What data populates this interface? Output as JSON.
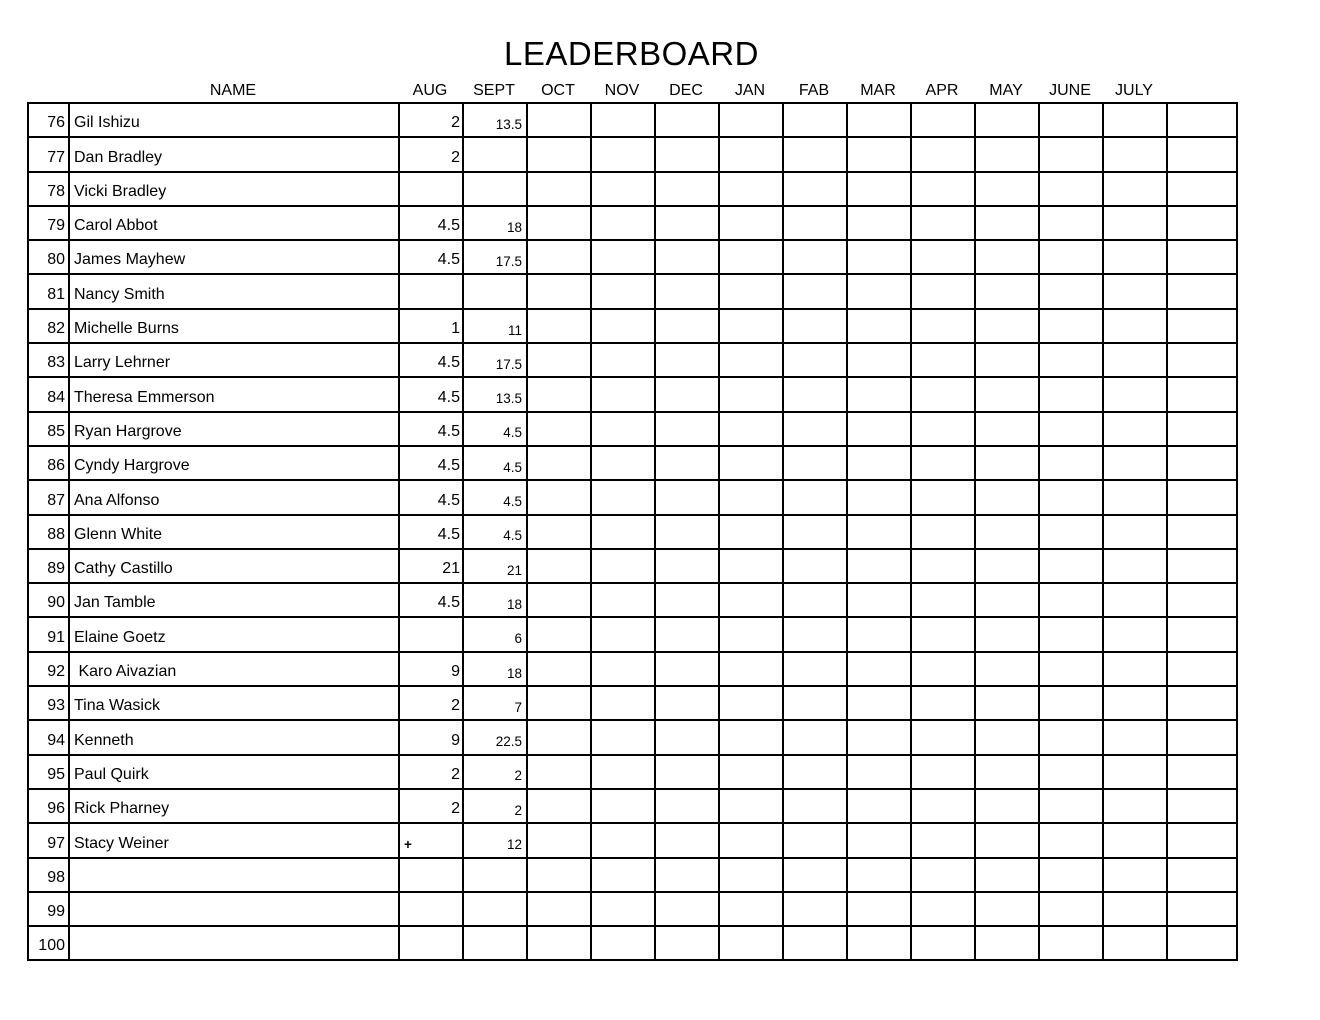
{
  "title": "LEADERBOARD",
  "table": {
    "name_header": "NAME",
    "month_headers": [
      "AUG",
      "SEPT",
      "OCT",
      "NOV",
      "DEC",
      "JAN",
      "FAB",
      "MAR",
      "APR",
      "MAY",
      "JUNE",
      "JULY"
    ],
    "rows": [
      {
        "num": "76",
        "name": "Gil Ishizu",
        "aug": "2",
        "sept": "13.5"
      },
      {
        "num": "77",
        "name": "Dan Bradley",
        "aug": "2",
        "sept": ""
      },
      {
        "num": "78",
        "name": "Vicki Bradley",
        "aug": "",
        "sept": ""
      },
      {
        "num": "79",
        "name": "Carol Abbot",
        "aug": "4.5",
        "sept": "18"
      },
      {
        "num": "80",
        "name": "James Mayhew",
        "aug": "4.5",
        "sept": "17.5"
      },
      {
        "num": "81",
        "name": "Nancy Smith",
        "aug": "",
        "sept": ""
      },
      {
        "num": "82",
        "name": "Michelle Burns",
        "aug": "1",
        "sept": "11"
      },
      {
        "num": "83",
        "name": "Larry Lehrner",
        "aug": "4.5",
        "sept": "17.5"
      },
      {
        "num": "84",
        "name": "Theresa Emmerson",
        "aug": "4.5",
        "sept": "13.5"
      },
      {
        "num": "85",
        "name": "Ryan Hargrove",
        "aug": "4.5",
        "sept": "4.5"
      },
      {
        "num": "86",
        "name": "Cyndy Hargrove",
        "aug": "4.5",
        "sept": "4.5"
      },
      {
        "num": "87",
        "name": "Ana Alfonso",
        "aug": "4.5",
        "sept": "4.5"
      },
      {
        "num": "88",
        "name": "Glenn White",
        "aug": "4.5",
        "sept": "4.5"
      },
      {
        "num": "89",
        "name": "Cathy Castillo",
        "aug": "21",
        "sept": "21"
      },
      {
        "num": "90",
        "name": "Jan Tamble",
        "aug": "4.5",
        "sept": "18"
      },
      {
        "num": "91",
        "name": "Elaine Goetz",
        "aug": "",
        "sept": "6"
      },
      {
        "num": "92",
        "name": " Karo Aivazian",
        "aug": "9",
        "sept": "18"
      },
      {
        "num": "93",
        "name": "Tina Wasick",
        "aug": "2",
        "sept": "7"
      },
      {
        "num": "94",
        "name": "Kenneth",
        "aug": "9",
        "sept": "22.5"
      },
      {
        "num": "95",
        "name": "Paul Quirk",
        "aug": "2",
        "sept": "2"
      },
      {
        "num": "96",
        "name": "Rick Pharney",
        "aug": "2",
        "sept": "2"
      },
      {
        "num": "97",
        "name": "Stacy Weiner",
        "aug": "+",
        "sept": "12"
      },
      {
        "num": "98",
        "name": "",
        "aug": "",
        "sept": ""
      },
      {
        "num": "99",
        "name": "",
        "aug": "",
        "sept": ""
      },
      {
        "num": "100",
        "name": "",
        "aug": "",
        "sept": ""
      }
    ]
  }
}
